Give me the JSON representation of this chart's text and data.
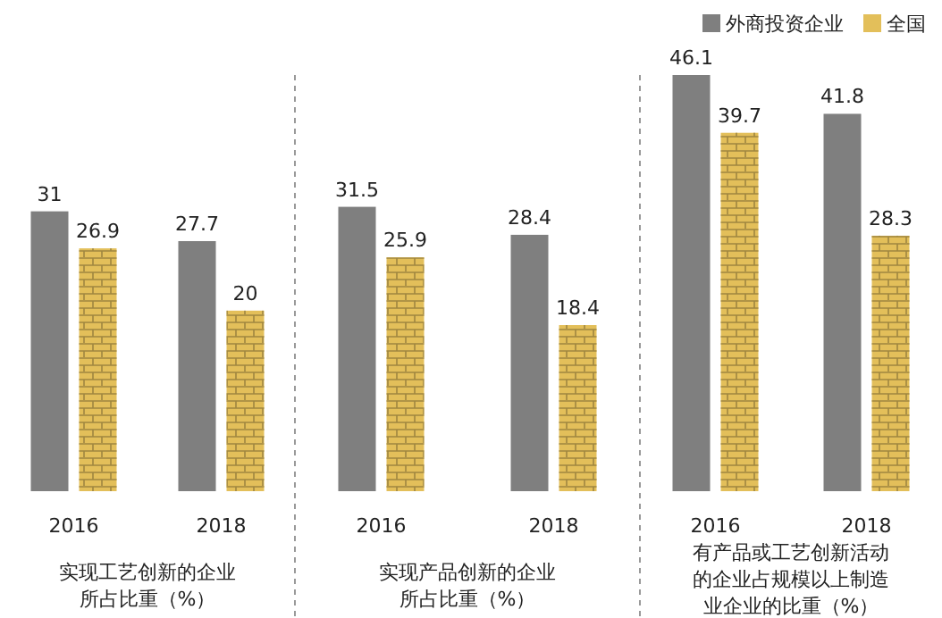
{
  "chart_data": [
    {
      "type": "bar",
      "categories": [
        "2016",
        "2018"
      ],
      "xlabel": "实现工艺创新的企业所占比重（%）",
      "data_labels": true,
      "series": [
        {
          "color": "#7f7f7f",
          "values": [
            31,
            27.7
          ]
        },
        {
          "color": "#e3bf5a",
          "values": [
            26.9,
            20
          ]
        }
      ]
    },
    {
      "type": "bar",
      "categories": [
        "2016",
        "2018"
      ],
      "xlabel": "实现产品创新的企业所占比重（%）",
      "data_labels": true,
      "series": [
        {
          "color": "#7f7f7f",
          "values": [
            31.5,
            28.4
          ]
        },
        {
          "color": "#e3bf5a",
          "values": [
            25.9,
            18.4
          ]
        }
      ]
    },
    {
      "type": "bar",
      "categories": [
        "2016",
        "2018"
      ],
      "xlabel": "有产品或工艺创新活动的企业占规模以上制造业企业的比重（%）",
      "data_labels": true,
      "legend": "top right",
      "series": [
        {
          "name": "外商投资企业",
          "color": "#7f7f7f",
          "values": [
            46.1,
            41.8
          ]
        },
        {
          "name": "全国",
          "color": "#e3bf5a",
          "values": [
            39.7,
            28.3
          ]
        }
      ]
    }
  ]
}
